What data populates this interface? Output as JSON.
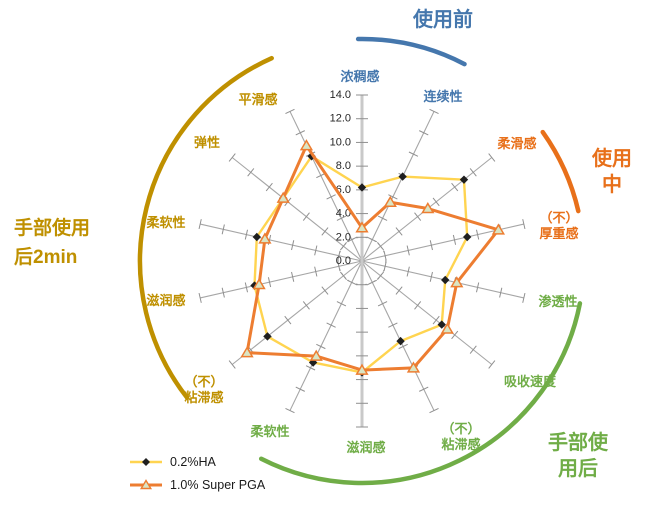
{
  "colors": {
    "before_use": "#4577AD",
    "in_use": "#E8701A",
    "after_use": "#70AD47",
    "after_2min": "#BF9000",
    "series_ha": "#FFD450",
    "series_pga": "#ED7D31",
    "marker_ha": "#1F1F1F",
    "marker_pga_fill": "#DAE5C4",
    "grid": "#A6A6A6",
    "value_axis": "#C9C9C9",
    "tick": "#8F8F8F",
    "value_label": "#262626"
  },
  "chart_data": {
    "type": "radar",
    "grid": "spoke-ticks, dashed inner circle",
    "legend_position": "bottom-left",
    "radial_axis": {
      "min": 0,
      "max": 14,
      "step": 2,
      "tick_labels": [
        "0.0",
        "2.0",
        "4.0",
        "6.0",
        "8.0",
        "10.0",
        "12.0",
        "14.0"
      ]
    },
    "groups": [
      {
        "key": "before_use",
        "title": "使用前"
      },
      {
        "key": "in_use",
        "title": "使用中"
      },
      {
        "key": "after_use",
        "title": "手部使用后"
      },
      {
        "key": "after_2min",
        "title": "手部使用\n后2min"
      }
    ],
    "axes": [
      {
        "label": "浓稠感",
        "group": "before_use"
      },
      {
        "label": "连续性",
        "group": "before_use"
      },
      {
        "label": "柔滑感",
        "group": "in_use"
      },
      {
        "label": "（不）\n厚重感",
        "group": "in_use"
      },
      {
        "label": "渗透性",
        "group": "after_use"
      },
      {
        "label": "吸收速度",
        "group": "after_use"
      },
      {
        "label": "（不）\n粘滞感",
        "group": "after_use"
      },
      {
        "label": "滋润感",
        "group": "after_use"
      },
      {
        "label": "柔软性",
        "group": "after_use"
      },
      {
        "label": "（不）\n粘滞感",
        "group": "after_2min"
      },
      {
        "label": "滋润感",
        "group": "after_2min"
      },
      {
        "label": "柔软性",
        "group": "after_2min"
      },
      {
        "label": "弹性",
        "group": "after_2min"
      },
      {
        "label": "平滑感",
        "group": "after_2min"
      }
    ],
    "series": [
      {
        "name": "0.2%HA",
        "marker": "diamond",
        "values": [
          6.2,
          7.9,
          11.0,
          9.1,
          7.2,
          8.6,
          7.5,
          9.4,
          9.5,
          10.2,
          9.3,
          9.1,
          8.5,
          9.8
        ]
      },
      {
        "name": "1.0% Super PGA",
        "marker": "triangle",
        "values": [
          2.8,
          5.5,
          7.1,
          11.8,
          8.2,
          9.2,
          10.0,
          9.2,
          8.9,
          12.4,
          8.9,
          8.4,
          8.5,
          10.8
        ]
      }
    ],
    "legend": [
      {
        "label": "0.2%HA"
      },
      {
        "label": "1.0% Super PGA"
      }
    ]
  }
}
